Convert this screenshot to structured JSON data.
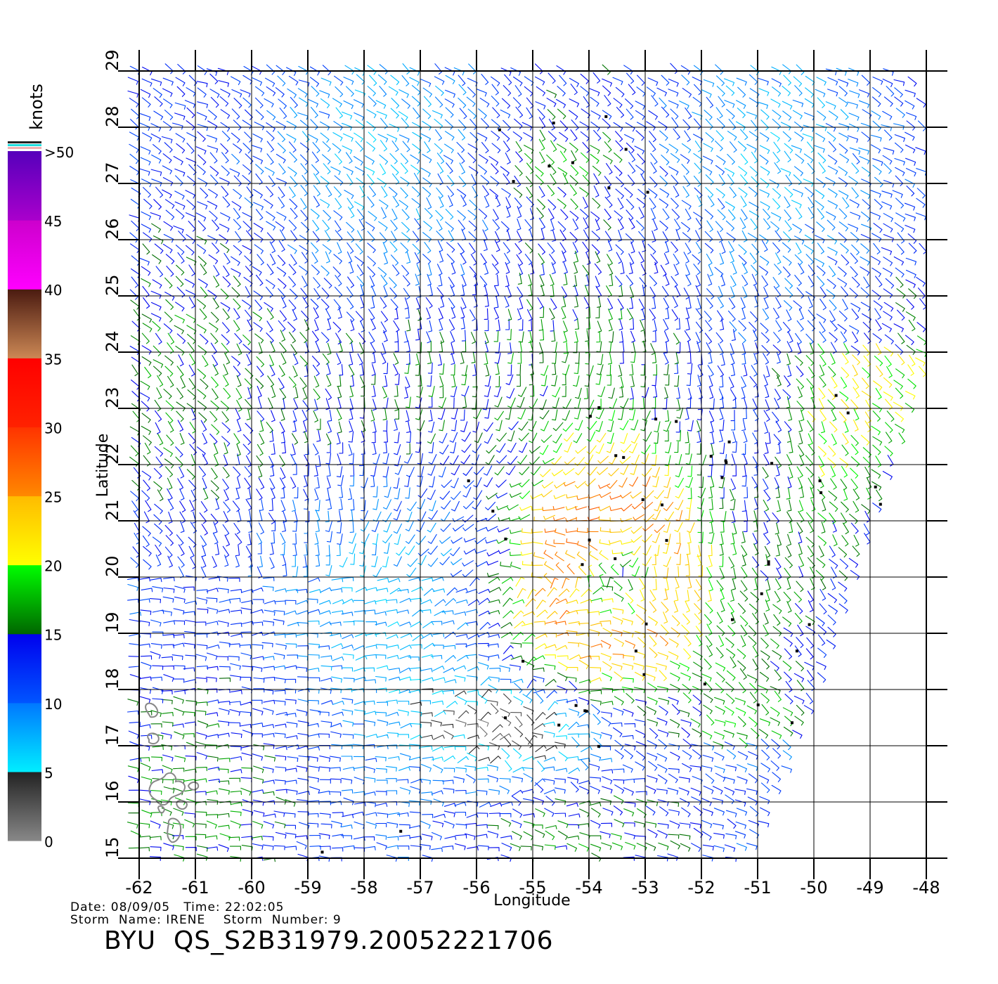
{
  "axes": {
    "xlabel": "Longitude",
    "ylabel": "Latitude",
    "xlim": [
      -62,
      -48
    ],
    "ylim": [
      15,
      29
    ],
    "xticks": [
      "-62",
      "-61",
      "-60",
      "-59",
      "-58",
      "-57",
      "-56",
      "-55",
      "-54",
      "-53",
      "-52",
      "-51",
      "-50",
      "-49",
      "-48"
    ],
    "yticks": [
      "15",
      "16",
      "17",
      "18",
      "19",
      "20",
      "21",
      "22",
      "23",
      "24",
      "25",
      "26",
      "27",
      "28",
      "29"
    ],
    "grid": true
  },
  "colorbar": {
    "title": "knots",
    "labels": [
      "0",
      "5",
      "10",
      "15",
      "20",
      "25",
      "30",
      "35",
      "40",
      "45",
      ">50"
    ],
    "colors": {
      "0-5": [
        "#888888",
        "#222222"
      ],
      "5-10": [
        "#00eeff",
        "#0077ff"
      ],
      "10-15": [
        "#0055ff",
        "#0000ee"
      ],
      "15-20": [
        "#006600",
        "#00ff00"
      ],
      "20-25": [
        "#ffff00",
        "#ffbb00"
      ],
      "25-30": [
        "#ff8800",
        "#ff3300"
      ],
      "30-35": [
        "#ff2200",
        "#ff0000"
      ],
      "35-40": [
        "#cc8855",
        "#4a1a10"
      ],
      "40-45": [
        "#ff00ff",
        "#cc00cc"
      ],
      "45-50": [
        "#aa00cc",
        "#5500bb"
      ]
    }
  },
  "info": {
    "line1": "Date: 08/09/05   Time: 22:02:05",
    "line2": "Storm  Name: IRENE    Storm  Number: 9"
  },
  "footer_title": "BYU  QS_S2B31979.20052221706",
  "storm": {
    "name": "IRENE",
    "number": "9",
    "center_lon": -53.5,
    "center_lat": 20.0
  }
}
